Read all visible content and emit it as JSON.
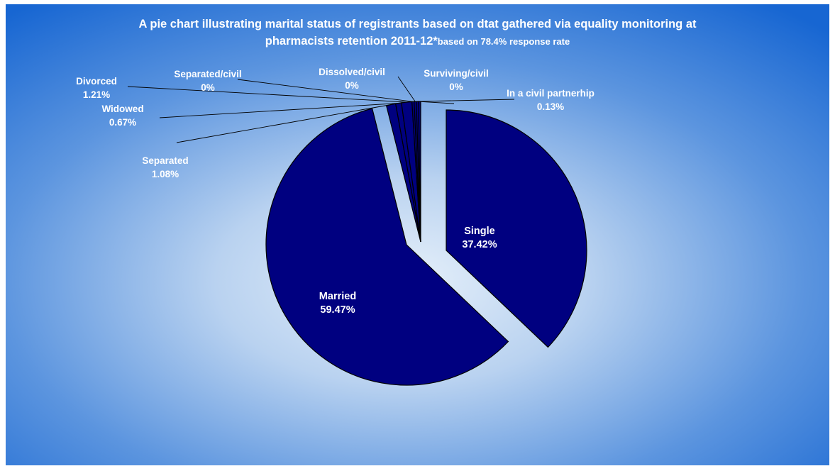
{
  "chart_data": {
    "type": "pie",
    "title_main": "A pie chart illustrating marital status of registrants based on dtat gathered via equality monitoring at",
    "title_line2": "pharmacists retention 2011-12*",
    "subtitle": "based on  78.4% response rate",
    "slices": [
      {
        "name": "Single",
        "label": "37.42%",
        "value": 37.42
      },
      {
        "name": "Married",
        "label": "59.47%",
        "value": 59.47
      },
      {
        "name": "Separated",
        "label": "1.08%",
        "value": 1.08
      },
      {
        "name": "Widowed",
        "label": "0.67%",
        "value": 0.67
      },
      {
        "name": "Divorced",
        "label": "1.21%",
        "value": 1.21
      },
      {
        "name": "Separated/civil",
        "label": "0%",
        "value": 0
      },
      {
        "name": "Dissolved/civil",
        "label": "0%",
        "value": 0
      },
      {
        "name": "Surviving/civil",
        "label": "0%",
        "value": 0
      },
      {
        "name": "In a civil partnerhip",
        "label": "0.13%",
        "value": 0.13
      }
    ],
    "colors": {
      "slice_fill": "#000080",
      "slice_stroke": "#000000",
      "label_text": "#ffffff",
      "background_center": "#e0ecf8",
      "background_edge": "#1f6fd6"
    }
  }
}
